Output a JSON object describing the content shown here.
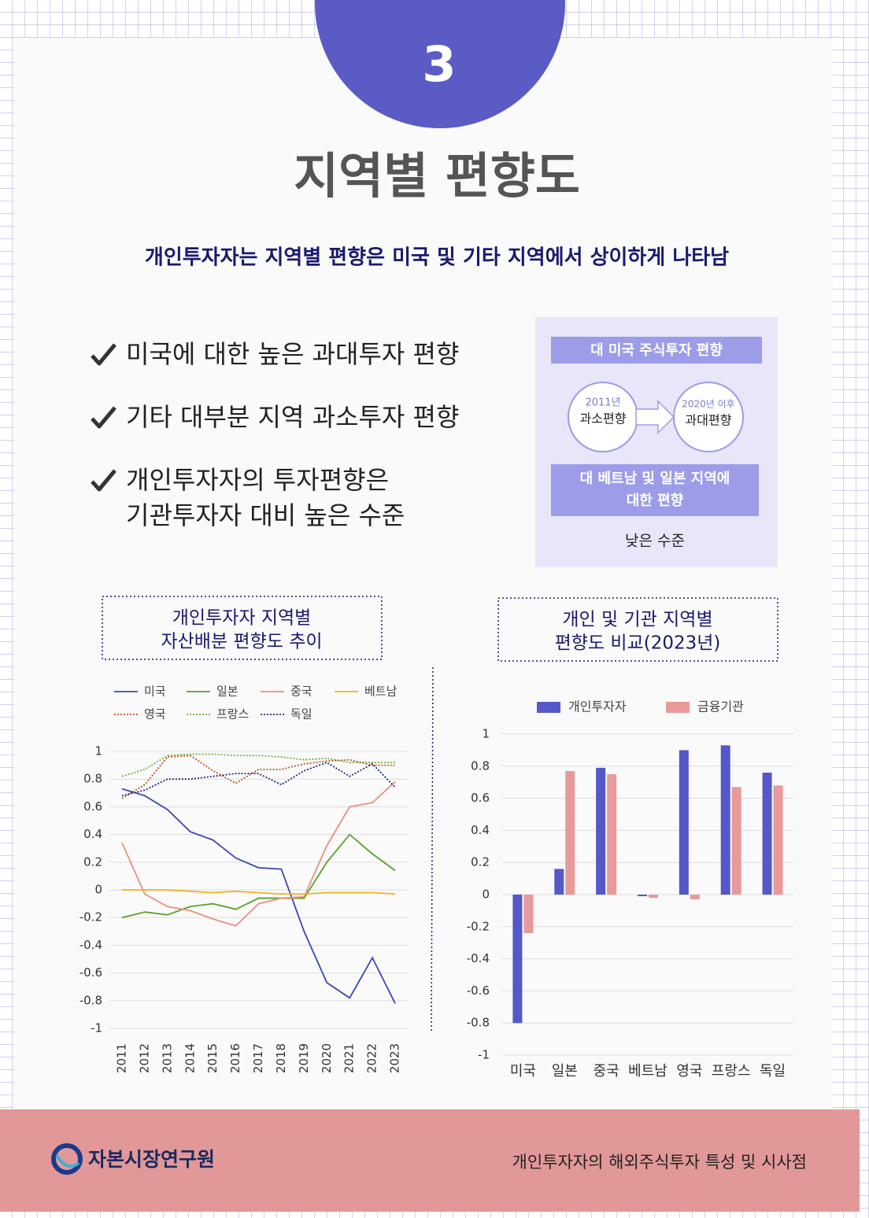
{
  "header": {
    "number": "3",
    "title": "지역별 편향도",
    "subtitle": "개인투자자는 지역별 편향은 미국 및 기타 지역에서 상이하게 나타남"
  },
  "bullets": [
    [
      "미국에 대한 높은 과대투자 편향"
    ],
    [
      "기타 대부분 지역 과소투자 편향"
    ],
    [
      "개인투자자의 투자편향은",
      "기관투자자 대비 높은 수준"
    ]
  ],
  "side_box": {
    "heading": "대 미국 주식투자 편향",
    "from": {
      "year": "2011년",
      "label": "과소편향"
    },
    "to": {
      "year": "2020년 이후",
      "label": "과대편향"
    },
    "heading2": [
      "대 베트남 및 일본 지역에",
      "대한 편향"
    ],
    "note": "낮은 수준"
  },
  "chart_data": [
    {
      "type": "line",
      "title": [
        "개인투자자 지역별",
        "자산배분 편향도 추이"
      ],
      "categories": [
        "2011",
        "2012",
        "2013",
        "2014",
        "2015",
        "2016",
        "2017",
        "2018",
        "2019",
        "2020",
        "2021",
        "2022",
        "2023"
      ],
      "ylim": [
        -1,
        1
      ],
      "yticks": [
        -1,
        -0.8,
        -0.6,
        -0.4,
        -0.2,
        0,
        0.2,
        0.4,
        0.6,
        0.8,
        1
      ],
      "grid": true,
      "series": [
        {
          "name": "미국",
          "color": "#3b47b0",
          "line_style": "solid",
          "values": [
            0.73,
            0.68,
            0.58,
            0.42,
            0.36,
            0.23,
            0.16,
            0.15,
            -0.3,
            -0.67,
            -0.78,
            -0.49,
            -0.82
          ]
        },
        {
          "name": "일본",
          "color": "#5aa02c",
          "line_style": "solid",
          "values": [
            -0.2,
            -0.16,
            -0.18,
            -0.12,
            -0.1,
            -0.14,
            -0.06,
            -0.06,
            -0.06,
            0.2,
            0.4,
            0.26,
            0.14
          ]
        },
        {
          "name": "중국",
          "color": "#e8907f",
          "line_style": "solid",
          "values": [
            0.34,
            -0.03,
            -0.12,
            -0.15,
            -0.21,
            -0.26,
            -0.1,
            -0.06,
            -0.05,
            0.32,
            0.6,
            0.63,
            0.78
          ]
        },
        {
          "name": "베트남",
          "color": "#f0b020",
          "line_style": "solid",
          "values": [
            0,
            0,
            0,
            -0.01,
            -0.02,
            -0.01,
            -0.02,
            -0.03,
            -0.03,
            -0.02,
            -0.02,
            -0.02,
            -0.03
          ]
        },
        {
          "name": "영국",
          "color": "#c0502a",
          "line_style": "dotted",
          "values": [
            0.66,
            0.76,
            0.96,
            0.97,
            0.86,
            0.77,
            0.87,
            0.87,
            0.91,
            0.93,
            0.94,
            0.9,
            0.9
          ]
        },
        {
          "name": "프랑스",
          "color": "#70b040",
          "line_style": "dotted",
          "values": [
            0.82,
            0.87,
            0.97,
            0.98,
            0.98,
            0.97,
            0.97,
            0.96,
            0.94,
            0.95,
            0.92,
            0.92,
            0.92
          ]
        },
        {
          "name": "독일",
          "color": "#1f2a80",
          "line_style": "dotted",
          "values": [
            0.68,
            0.72,
            0.8,
            0.8,
            0.82,
            0.84,
            0.84,
            0.76,
            0.86,
            0.92,
            0.82,
            0.91,
            0.74
          ]
        }
      ]
    },
    {
      "type": "bar",
      "title": [
        "개인 및 기관 지역별",
        "편향도 비교(2023년)"
      ],
      "categories": [
        "미국",
        "일본",
        "중국",
        "베트남",
        "영국",
        "프랑스",
        "독일"
      ],
      "ylim": [
        -1,
        1
      ],
      "yticks": [
        -1,
        -0.8,
        -0.6,
        -0.4,
        -0.2,
        0,
        0.2,
        0.4,
        0.6,
        0.8,
        1
      ],
      "grid": true,
      "series": [
        {
          "name": "개인투자자",
          "color": "#5558c8",
          "values": [
            -0.8,
            0.16,
            0.79,
            -0.01,
            0.9,
            0.93,
            0.76
          ]
        },
        {
          "name": "금융기관",
          "color": "#e89a9a",
          "values": [
            -0.24,
            0.77,
            0.75,
            -0.02,
            -0.03,
            0.67,
            0.68
          ]
        }
      ]
    }
  ],
  "footer": {
    "organization": "자본시장연구원",
    "publication": "개인투자자의 해외주식투자 특성 및 시사점"
  }
}
